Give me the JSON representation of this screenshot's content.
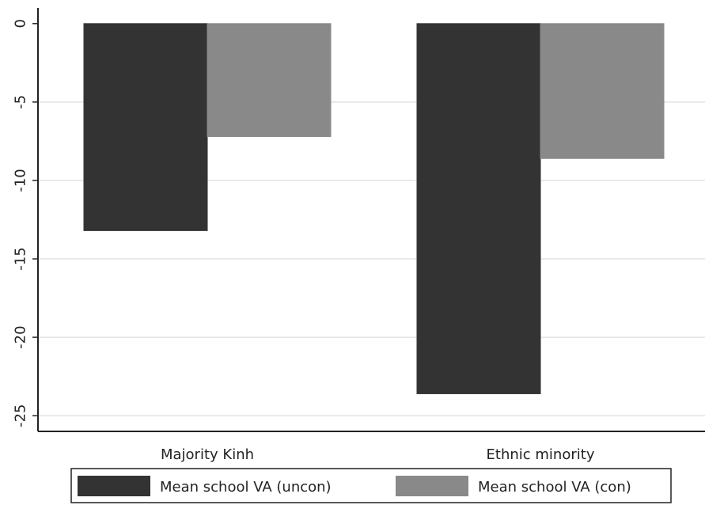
{
  "chart_data": {
    "type": "bar",
    "categories": [
      "Majority Kinh",
      "Ethnic minority"
    ],
    "series": [
      {
        "name": "Mean school VA (uncon)",
        "values": [
          -13.2,
          -23.6
        ],
        "color": "#333333"
      },
      {
        "name": "Mean school VA (con)",
        "values": [
          -7.2,
          -8.6
        ],
        "color": "#898989"
      }
    ],
    "yticks": [
      0,
      -5,
      -10,
      -15,
      -20,
      -25
    ],
    "ylim": [
      -26,
      1
    ],
    "grid": true,
    "legend_position": "bottom"
  }
}
